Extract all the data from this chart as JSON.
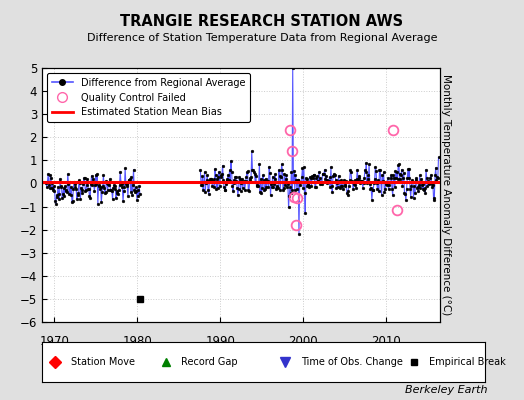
{
  "title": "TRANGIE RESEARCH STATION AWS",
  "subtitle": "Difference of Station Temperature Data from Regional Average",
  "ylabel": "Monthly Temperature Anomaly Difference (°C)",
  "xlabel_credit": "Berkeley Earth",
  "ylim": [
    -6,
    5
  ],
  "yticks": [
    -6,
    -5,
    -4,
    -3,
    -2,
    -1,
    0,
    1,
    2,
    3,
    4,
    5
  ],
  "xlim": [
    1968.5,
    2016.5
  ],
  "xticks": [
    1970,
    1980,
    1990,
    2000,
    2010
  ],
  "bias_line_y": 0.05,
  "empirical_break_x": 1980.3,
  "bg_color": "#e0e0e0",
  "plot_bg_color": "#ffffff",
  "line_color": "#5555ff",
  "bias_color": "#ff0000",
  "seed": 42,
  "gap_start": 1980.5,
  "gap_end": 1987.5,
  "segment1_start": 1969.0,
  "segment1_end": 1980.3,
  "segment2_start": 1987.6,
  "segment2_end": 2016.3,
  "spike_year": 1998.7,
  "spike_value": 5.0,
  "qc_points": [
    [
      1998.4,
      2.3
    ],
    [
      1998.6,
      1.4
    ],
    [
      1998.9,
      -0.6
    ],
    [
      1999.1,
      -1.8
    ],
    [
      1999.3,
      -0.65
    ],
    [
      2010.8,
      2.3
    ],
    [
      2011.3,
      -1.15
    ]
  ]
}
